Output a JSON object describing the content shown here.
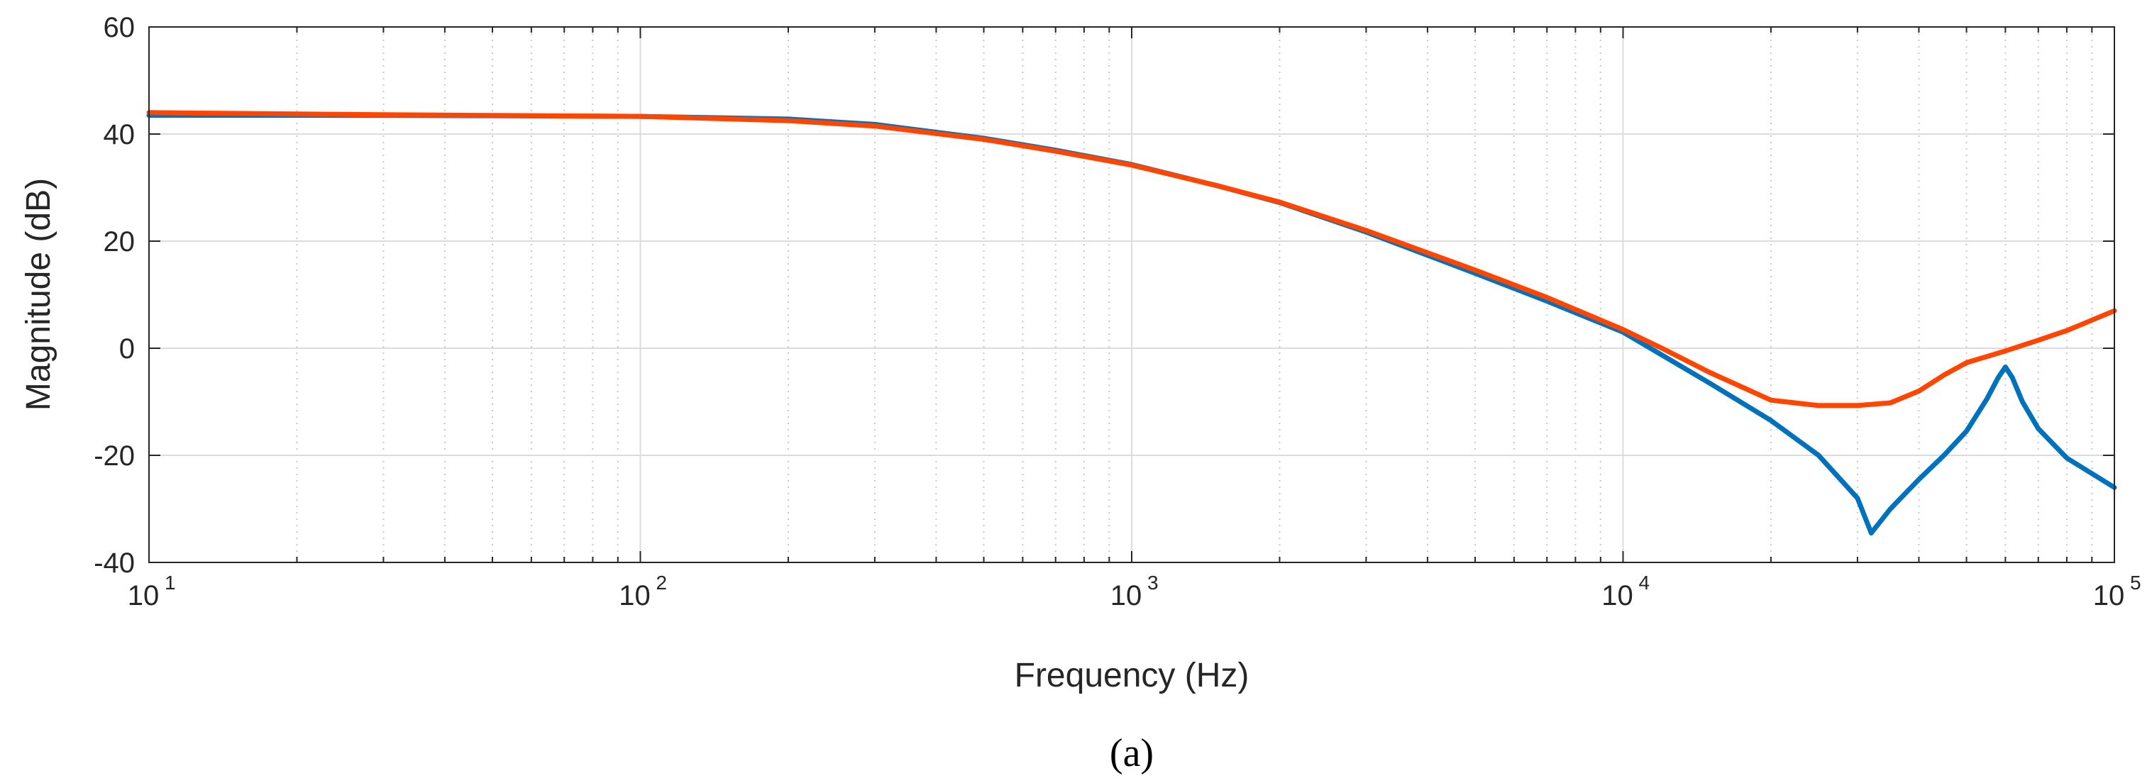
{
  "chart_data": {
    "type": "line",
    "panel_label": "(a)",
    "xlabel": "Frequency (Hz)",
    "ylabel": "Magnitude (dB)",
    "xscale": "log",
    "xlim": [
      10,
      100000
    ],
    "ylim": [
      -40,
      60
    ],
    "grid": true,
    "legend": "none",
    "x_ticks": [
      {
        "base": "10",
        "exp": "1"
      },
      {
        "base": "10",
        "exp": "2"
      },
      {
        "base": "10",
        "exp": "3"
      },
      {
        "base": "10",
        "exp": "4"
      },
      {
        "base": "10",
        "exp": "5"
      }
    ],
    "y_ticks": [
      "-40",
      "-20",
      "0",
      "20",
      "40",
      "60"
    ],
    "colors": {
      "series_1": "#0072BD",
      "series_2": "#FF4500"
    },
    "series": [
      {
        "color": "#0072BD",
        "x": [
          10,
          30,
          100,
          200,
          300,
          500,
          700,
          1000,
          1500,
          2000,
          3000,
          5000,
          7000,
          10000,
          15000,
          20000,
          25000,
          30000,
          32000,
          35000,
          40000,
          45000,
          50000,
          55000,
          58000,
          60000,
          62000,
          65000,
          70000,
          80000,
          100000
        ],
        "y": [
          43.5,
          43.5,
          43.3,
          42.8,
          41.8,
          39.2,
          37,
          34.3,
          30.3,
          27.2,
          21.7,
          14,
          8.8,
          3,
          -6.5,
          -13.5,
          -20,
          -28,
          -34.5,
          -30,
          -24.5,
          -20,
          -15.5,
          -9.5,
          -5.5,
          -3.5,
          -5.5,
          -10,
          -15,
          -20.5,
          -26
        ]
      },
      {
        "color": "#FF4500",
        "x": [
          10,
          30,
          100,
          200,
          300,
          500,
          700,
          1000,
          1500,
          2000,
          3000,
          5000,
          7000,
          10000,
          12000,
          15000,
          20000,
          25000,
          30000,
          35000,
          40000,
          45000,
          50000,
          60000,
          70000,
          80000,
          100000
        ],
        "y": [
          44,
          43.6,
          43.3,
          42.5,
          41.5,
          39,
          36.8,
          34.2,
          30.3,
          27.3,
          22,
          14.6,
          9.5,
          3.5,
          0,
          -4.5,
          -9.7,
          -10.7,
          -10.7,
          -10.2,
          -8,
          -5,
          -2.7,
          -0.5,
          1.5,
          3.3,
          7
        ]
      }
    ]
  }
}
